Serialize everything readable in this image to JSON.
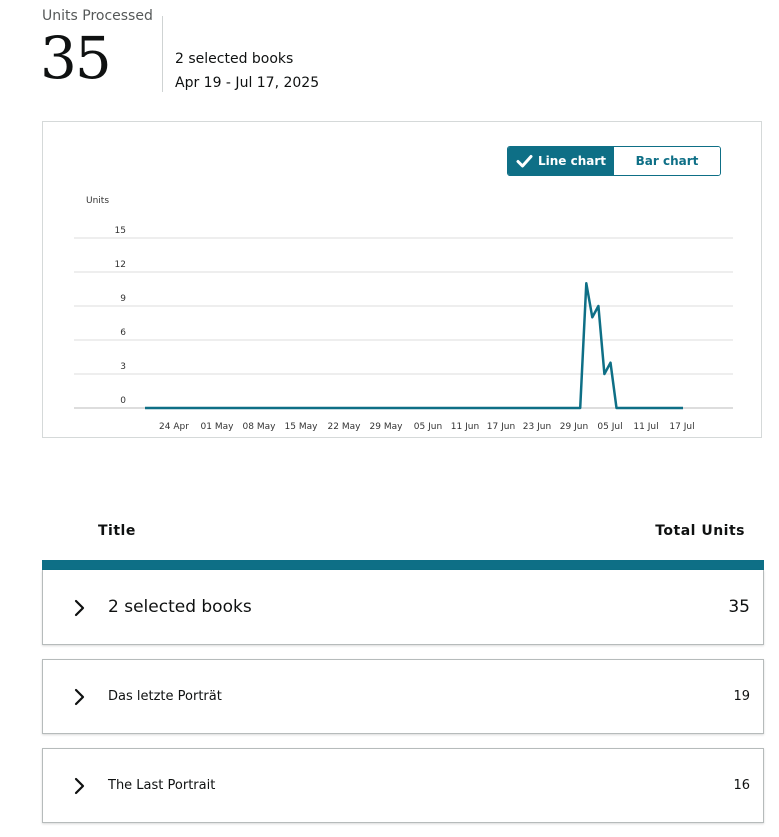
{
  "kpi": {
    "label": "Units Processed",
    "value": "35",
    "selection": "2 selected books",
    "date_range": "Apr 19 - Jul 17, 2025"
  },
  "toggle": {
    "line_label": "Line chart",
    "bar_label": "Bar chart",
    "active": "line"
  },
  "colors": {
    "accent": "#0e6f86",
    "grid": "#dddddd"
  },
  "chart_data": {
    "type": "line",
    "ylabel": "Units",
    "ylim": [
      0,
      15
    ],
    "yticks": [
      "15",
      "12",
      "9",
      "6",
      "3",
      "0"
    ],
    "xticks": [
      "24 Apr",
      "01 May",
      "08 May",
      "15 May",
      "22 May",
      "29 May",
      "05 Jun",
      "11 Jun",
      "17 Jun",
      "23 Jun",
      "29 Jun",
      "05 Jul",
      "11 Jul",
      "17 Jul"
    ],
    "grid": true,
    "legend": "none",
    "series": [
      {
        "x": [
          "2025-04-19",
          "2025-06-30",
          "2025-07-01",
          "2025-07-02",
          "2025-07-03",
          "2025-07-04",
          "2025-07-05",
          "2025-07-06",
          "2025-07-17"
        ],
        "y": [
          0,
          0,
          11,
          8,
          9,
          3,
          4,
          0,
          0
        ]
      }
    ]
  },
  "table": {
    "col_title": "Title",
    "col_total": "Total Units",
    "rows": [
      {
        "title": "2 selected books",
        "total": "35"
      },
      {
        "title": "Das letzte Porträt",
        "total": "19"
      },
      {
        "title": "The Last Portrait",
        "total": "16"
      }
    ]
  }
}
